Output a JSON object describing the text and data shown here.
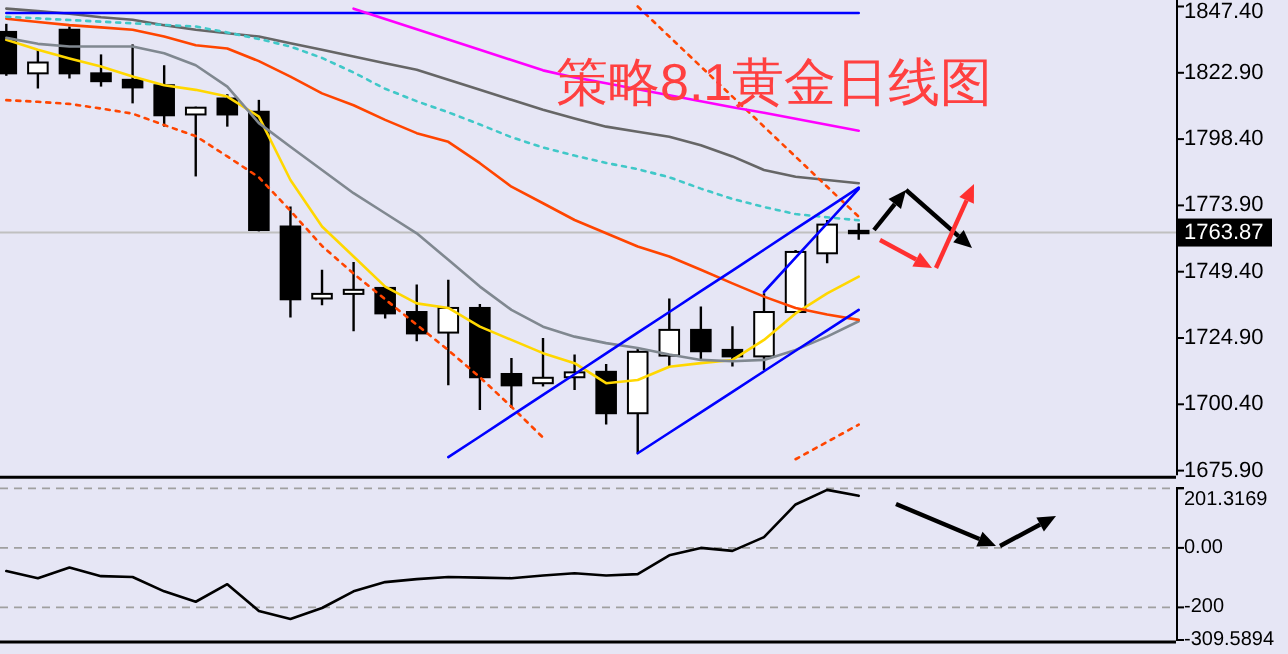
{
  "chart_data": [
    {
      "type": "candlestick",
      "title": "策略8.1黄金日线图",
      "categories": [
        null,
        null,
        null,
        null,
        null,
        null,
        null,
        null,
        null,
        null,
        null,
        null,
        null,
        null,
        null,
        null,
        null,
        null,
        null,
        null,
        null,
        null,
        null,
        null,
        null,
        null,
        null,
        null
      ],
      "ohlc": [
        [
          1838.0,
          1841.0,
          1821.8,
          1822.7
        ],
        [
          1822.7,
          1831.4,
          1817.1,
          1826.7
        ],
        [
          1838.8,
          1840.0,
          1820.8,
          1822.7
        ],
        [
          1822.7,
          1829.7,
          1817.8,
          1819.8
        ],
        [
          1820.3,
          1833.4,
          1811.6,
          1817.5
        ],
        [
          1818.3,
          1825.7,
          1803.0,
          1807.2
        ],
        [
          1807.5,
          1810.4,
          1784.6,
          1810.0
        ],
        [
          1813.4,
          1815.0,
          1803.0,
          1807.5
        ],
        [
          1808.5,
          1812.9,
          1764.3,
          1764.8
        ],
        [
          1766.1,
          1773.5,
          1732.5,
          1739.2
        ],
        [
          1739.5,
          1750.1,
          1737.0,
          1741.2
        ],
        [
          1741.2,
          1753.0,
          1727.4,
          1742.7
        ],
        [
          1743.4,
          1744.0,
          1732.1,
          1734.0
        ],
        [
          1734.5,
          1744.7,
          1723.7,
          1726.6
        ],
        [
          1726.9,
          1746.4,
          1707.4,
          1736.0
        ],
        [
          1736.0,
          1737.5,
          1698.3,
          1710.4
        ],
        [
          1711.6,
          1717.5,
          1699.0,
          1707.4
        ],
        [
          1708.2,
          1724.9,
          1707.0,
          1710.2
        ],
        [
          1710.4,
          1718.8,
          1705.7,
          1712.2
        ],
        [
          1712.4,
          1715.3,
          1692.9,
          1697.1
        ],
        [
          1697.1,
          1721.2,
          1682.3,
          1719.8
        ],
        [
          1718.4,
          1739.5,
          1714.4,
          1727.9
        ],
        [
          1727.9,
          1736.5,
          1716.8,
          1720.0
        ],
        [
          1720.5,
          1729.2,
          1714.4,
          1718.1
        ],
        [
          1718.1,
          1741.4,
          1713.1,
          1734.5
        ],
        [
          1734.5,
          1757.4,
          1734.0,
          1756.7
        ],
        [
          1756.2,
          1768.5,
          1752.5,
          1766.8
        ],
        [
          1764.5,
          1767.3,
          1761.2,
          1763.87
        ]
      ],
      "ylim": [
        1674.2,
        1849.8
      ],
      "yticks": [
        {
          "value": 1847.4,
          "label": "1847.40"
        },
        {
          "value": 1822.9,
          "label": "1822.90"
        },
        {
          "value": 1798.4,
          "label": "1798.40"
        },
        {
          "value": 1773.9,
          "label": "1773.90"
        },
        {
          "value": 1749.4,
          "label": "1749.40"
        },
        {
          "value": 1724.9,
          "label": "1724.90"
        },
        {
          "value": 1700.4,
          "label": "1700.40"
        },
        {
          "value": 1675.9,
          "label": "1675.90"
        }
      ],
      "tick_labels": "y",
      "ref_lines": [
        {
          "axis": "y",
          "value": 1763.87,
          "label": "1763.87",
          "color": "#c0c0c0"
        }
      ],
      "series": [
        {
          "type": "line",
          "color": "#ffd700",
          "values": [
            1835.1,
            1831.4,
            1828.2,
            1825.2,
            1821.5,
            1818.3,
            1816.6,
            1814.1,
            1806.7,
            1783.3,
            1766.1,
            1755.0,
            1743.9,
            1737.7,
            1736.0,
            1729.1,
            1724.2,
            1719.3,
            1715.6,
            1708.2,
            1709.4,
            1714.3,
            1715.6,
            1716.8,
            1724.2,
            1734.0,
            1741.4,
            1747.6
          ]
        },
        {
          "type": "line",
          "color": "#808890",
          "values": [
            1835.8,
            1833.6,
            1832.6,
            1832.6,
            1832.6,
            1830.1,
            1825.7,
            1817.8,
            1804.3,
            1795.6,
            1787.0,
            1778.4,
            1771.0,
            1763.6,
            1753.8,
            1743.9,
            1735.3,
            1729.1,
            1725.4,
            1723.0,
            1721.2,
            1718.8,
            1716.8,
            1716.3,
            1716.8,
            1720.5,
            1725.4,
            1731.1
          ]
        },
        {
          "type": "line",
          "color": "#ff4500",
          "values": [
            1842.9,
            1841.7,
            1840.5,
            1839.7,
            1838.8,
            1836.3,
            1833.1,
            1831.9,
            1827.2,
            1821.5,
            1815.3,
            1810.9,
            1805.5,
            1800.6,
            1797.4,
            1789.5,
            1780.8,
            1774.7,
            1768.5,
            1763.6,
            1758.7,
            1755.0,
            1750.1,
            1745.1,
            1740.2,
            1736.0,
            1733.6,
            1731.6
          ]
        },
        {
          "type": "line",
          "color": "#666666",
          "values": [
            1846.6,
            1845.7,
            1844.7,
            1843.4,
            1842.5,
            1840.5,
            1838.8,
            1837.5,
            1836.3,
            1833.8,
            1831.4,
            1828.9,
            1826.4,
            1824.0,
            1820.3,
            1816.6,
            1812.9,
            1809.2,
            1806.0,
            1803.0,
            1801.1,
            1799.3,
            1796.1,
            1792.0,
            1787.0,
            1784.5,
            1783.3,
            1782.1
          ]
        },
        {
          "type": "line",
          "color": "#40c8c8",
          "line_style": "dotted",
          "values": [
            1843.6,
            1843.0,
            1842.4,
            1841.8,
            1841.2,
            1840.6,
            1840.0,
            1837.8,
            1835.4,
            1832.6,
            1828.4,
            1823.0,
            1817.0,
            1812.4,
            1808.3,
            1803.8,
            1799.1,
            1795.3,
            1792.3,
            1789.6,
            1787.3,
            1784.3,
            1780.1,
            1776.3,
            1773.3,
            1770.7,
            1769.5,
            1768.4
          ]
        },
        {
          "type": "line",
          "color": "#ff4500",
          "line_style": "dotted",
          "values": [
            1812.8,
            1812.2,
            1811.4,
            1809.7,
            1807.8,
            1803.6,
            1799.5,
            1792.0,
            1784.3,
            1771.9,
            1758.9,
            1748.7,
            1739.2,
            1729.8,
            1720.4,
            1710.4,
            1699.5,
            1688.1,
            null,
            null,
            null,
            null,
            null,
            null,
            null,
            1680.1,
            1686.5,
            1692.9
          ]
        },
        {
          "type": "line",
          "color": "#ff4500",
          "line_style": "dotted",
          "values": [
            null,
            null,
            null,
            null,
            null,
            null,
            null,
            null,
            null,
            null,
            null,
            null,
            null,
            null,
            null,
            null,
            null,
            null,
            null,
            null,
            1847.4,
            1836.3,
            1825.2,
            1814.1,
            1803.0,
            1791.9,
            1780.8,
            1769.7
          ]
        },
        {
          "type": "line",
          "color": "#0000ff",
          "values": [
            1845.0,
            1845.0,
            1845.0,
            1845.0,
            1845.0,
            1845.0,
            1845.0,
            1845.0,
            1845.0,
            1845.0,
            1845.0,
            1845.0,
            1845.0,
            1845.0,
            1845.0,
            1845.0,
            1845.0,
            1845.0,
            1845.0,
            1845.0,
            1845.0,
            1845.0,
            1845.0,
            1845.0,
            1845.0,
            1845.0,
            1845.0,
            1845.0
          ]
        },
        {
          "type": "line",
          "color": "#ff00ff",
          "values": [
            null,
            null,
            null,
            null,
            null,
            null,
            null,
            null,
            null,
            null,
            null,
            1846.6,
            1842.8,
            1839.0,
            1835.2,
            1831.4,
            1827.6,
            1823.8,
            1821.2,
            1819.0,
            1816.8,
            1814.6,
            1812.4,
            1810.2,
            1808.1,
            1805.9,
            1803.7,
            1801.5
          ]
        },
        {
          "type": "line",
          "color": "#0000ff",
          "values": [
            null,
            null,
            null,
            null,
            null,
            null,
            null,
            null,
            null,
            null,
            null,
            null,
            null,
            null,
            null,
            null,
            null,
            null,
            null,
            null,
            1682.3,
            1689.9,
            1697.4,
            1705.0,
            1712.6,
            1720.2,
            1727.7,
            1735.3
          ]
        },
        {
          "type": "line",
          "color": "#0000ff",
          "values": [
            null,
            null,
            null,
            null,
            null,
            null,
            null,
            null,
            null,
            null,
            null,
            null,
            null,
            null,
            1680.9,
            1688.5,
            1696.2,
            1703.9,
            1711.5,
            1719.2,
            1726.9,
            1734.5,
            1742.2,
            1749.8,
            1757.5,
            1765.2,
            1772.8,
            1780.5
          ]
        },
        {
          "type": "line",
          "color": "#0000ff",
          "values": [
            null,
            null,
            null,
            null,
            null,
            null,
            null,
            null,
            null,
            null,
            null,
            null,
            null,
            null,
            null,
            null,
            null,
            null,
            null,
            null,
            null,
            null,
            null,
            null,
            1741.9,
            1754.6,
            1767.3,
            1780.0
          ]
        }
      ]
    },
    {
      "type": "line",
      "categories": [
        null,
        null,
        null,
        null,
        null,
        null,
        null,
        null,
        null,
        null,
        null,
        null,
        null,
        null,
        null,
        null,
        null,
        null,
        null,
        null,
        null,
        null,
        null,
        null,
        null,
        null,
        null,
        null
      ],
      "values": [
        -78,
        -102,
        -66,
        -95,
        -98,
        -146,
        -181,
        -122,
        -212,
        -239,
        -202,
        -146,
        -115,
        -105,
        -98,
        -100,
        -102,
        -93,
        -85,
        -93,
        -88,
        -25,
        0,
        -10,
        36,
        146,
        195,
        175
      ],
      "color": "#000000",
      "ylim": [
        -309.5894,
        201.3169
      ],
      "yticks": [
        {
          "value": 201.3169,
          "label": "201.3169"
        },
        {
          "value": 200,
          "label": null
        },
        {
          "value": 0,
          "label": "0.00"
        },
        {
          "value": -200,
          "label": "-200"
        },
        {
          "value": -309.5894,
          "label": "-309.5894"
        }
      ],
      "grid": "y",
      "tick_labels": "y"
    }
  ]
}
